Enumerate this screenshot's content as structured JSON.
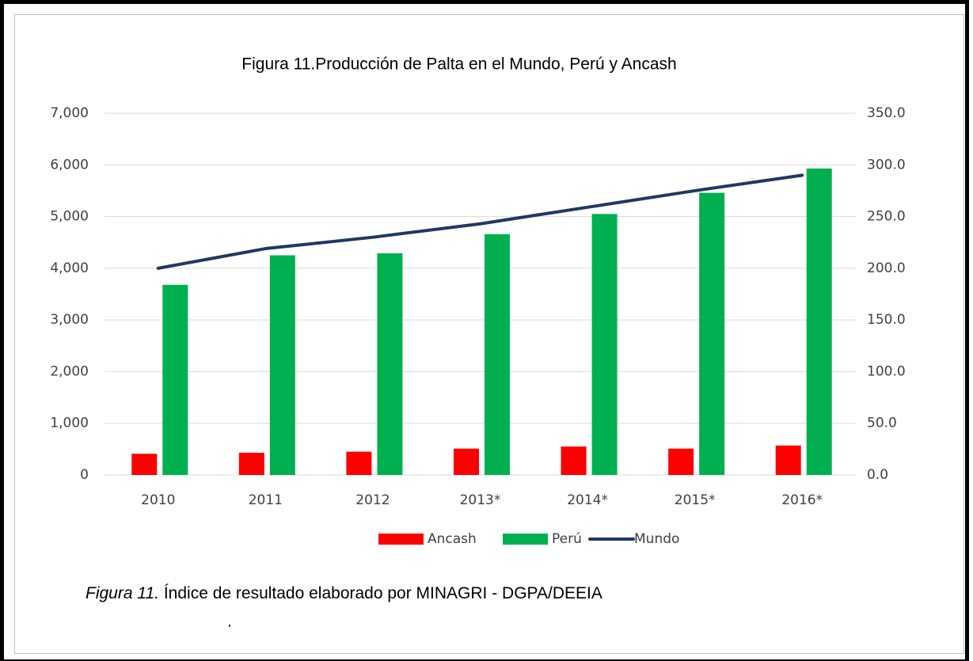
{
  "chart_data": {
    "type": "bar_line",
    "title": "Figura 11.Producción de Palta en el Mundo, Perú y Ancash",
    "categories": [
      "2010",
      "2011",
      "2012",
      "2013*",
      "2014*",
      "2015*",
      "2016*"
    ],
    "series": [
      {
        "name": "Ancash",
        "color": "#ff0000",
        "type": "bar",
        "values": [
          410,
          430,
          450,
          510,
          550,
          510,
          570
        ]
      },
      {
        "name": "Perú",
        "color": "#00b050",
        "type": "bar",
        "values": [
          3680,
          4250,
          4290,
          4660,
          5050,
          5460,
          5930
        ]
      },
      {
        "name": "Mundo",
        "color": "#1f3864",
        "type": "line",
        "axis": "y2",
        "values": [
          200,
          219,
          230,
          243,
          259,
          275,
          290
        ]
      }
    ],
    "ylim": [
      0,
      7000
    ],
    "yticks": [
      0,
      {
        "value": 1000,
        "label": "1,000"
      },
      {
        "value": 2000,
        "label": "2,000"
      },
      {
        "value": 3000,
        "label": "3,000"
      },
      {
        "value": 4000,
        "label": "4,000"
      },
      {
        "value": 5000,
        "label": "5,000"
      },
      {
        "value": 6000,
        "label": "6,000"
      },
      {
        "value": 7000,
        "label": "7,000"
      }
    ],
    "y2lim": [
      0,
      350
    ],
    "y2ticks": [
      {
        "value": 0,
        "label": "0.0"
      },
      {
        "value": 50,
        "label": "50.0"
      },
      {
        "value": 100,
        "label": "100.0"
      },
      {
        "value": 150,
        "label": "150.0"
      },
      {
        "value": 200,
        "label": "200.0"
      },
      {
        "value": 250,
        "label": "250.0"
      },
      {
        "value": 300,
        "label": "300.0"
      },
      {
        "value": 350,
        "label": "350.0"
      }
    ],
    "grid": true,
    "legend": "bottom",
    "caption_label": "Figura 11.",
    "caption": " Índice de resultado elaborado por MINAGRI - DGPA/DEEIA",
    "footnote": "."
  }
}
